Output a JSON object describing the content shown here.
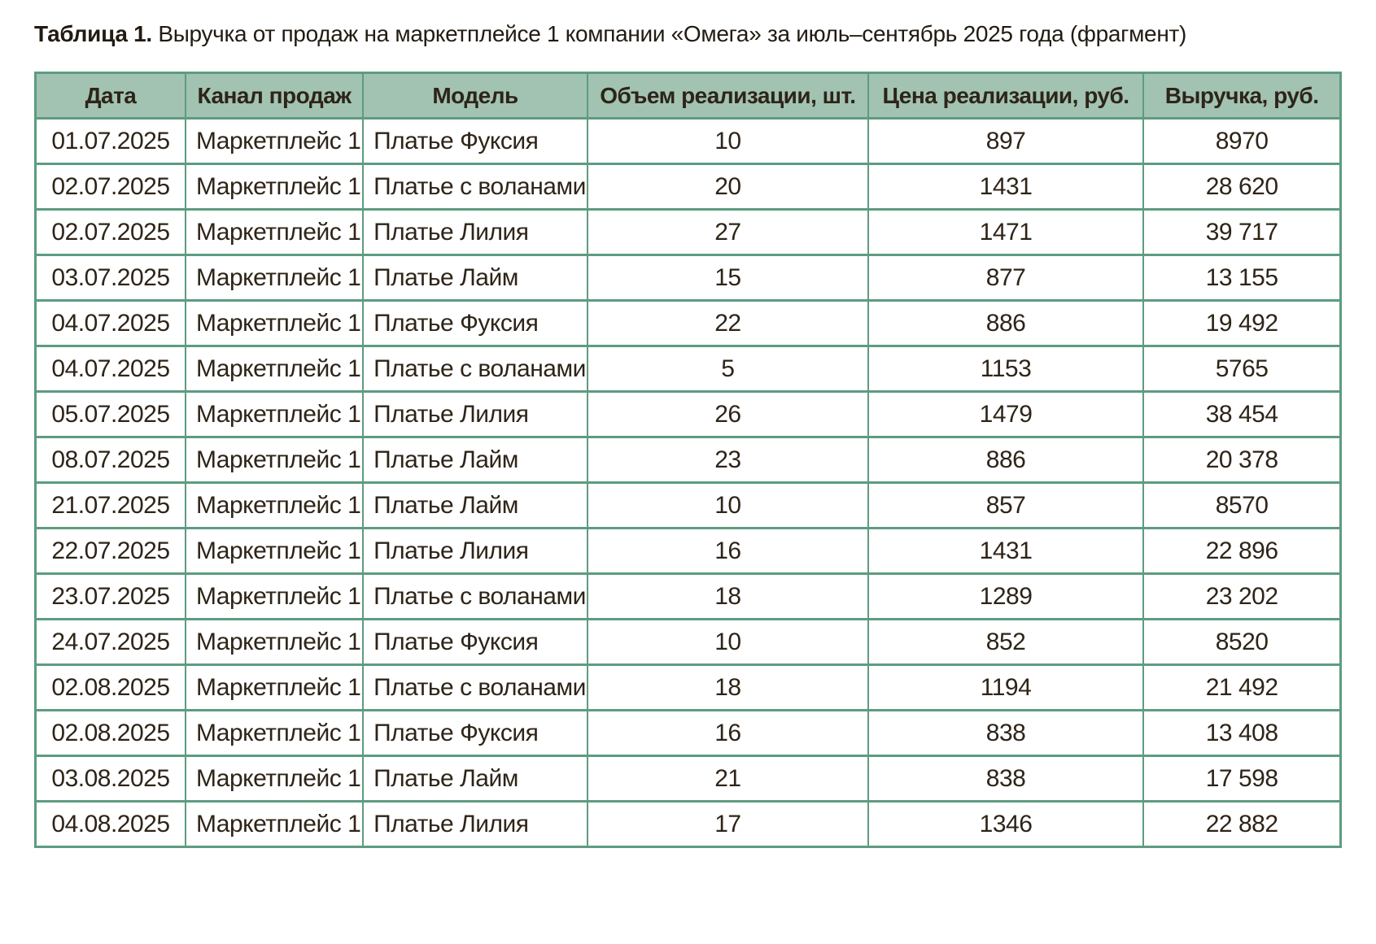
{
  "title": {
    "label": "Таблица 1.",
    "text": " Выручка от продаж на маркетплейсе 1 компании «Омега» за июль–сентябрь 2025 года (фрагмент)"
  },
  "colors": {
    "header_bg": "#a2c3b2",
    "border": "#5d9c81",
    "cell_text": "#2e2418",
    "row_bg": "#ffffff"
  },
  "table": {
    "columns": [
      {
        "key": "date",
        "label": "Дата",
        "align": "center"
      },
      {
        "key": "channel",
        "label": "Канал продаж",
        "align": "left"
      },
      {
        "key": "model",
        "label": "Модель",
        "align": "left"
      },
      {
        "key": "volume",
        "label": "Объем реализации, шт.",
        "align": "center"
      },
      {
        "key": "price",
        "label": "Цена реализации, руб.",
        "align": "center"
      },
      {
        "key": "revenue",
        "label": "Выручка, руб.",
        "align": "center"
      }
    ],
    "rows": [
      [
        "01.07.2025",
        "Маркетплейс 1",
        "Платье Фуксия",
        "10",
        "897",
        "8970"
      ],
      [
        "02.07.2025",
        "Маркетплейс 1",
        "Платье с воланами",
        "20",
        "1431",
        "28 620"
      ],
      [
        "02.07.2025",
        "Маркетплейс 1",
        "Платье Лилия",
        "27",
        "1471",
        "39 717"
      ],
      [
        "03.07.2025",
        "Маркетплейс 1",
        "Платье Лайм",
        "15",
        "877",
        "13 155"
      ],
      [
        "04.07.2025",
        "Маркетплейс 1",
        "Платье Фуксия",
        "22",
        "886",
        "19 492"
      ],
      [
        "04.07.2025",
        "Маркетплейс 1",
        "Платье с воланами",
        "5",
        "1153",
        "5765"
      ],
      [
        "05.07.2025",
        "Маркетплейс 1",
        "Платье Лилия",
        "26",
        "1479",
        "38 454"
      ],
      [
        "08.07.2025",
        "Маркетплейс 1",
        "Платье Лайм",
        "23",
        "886",
        "20 378"
      ],
      [
        "21.07.2025",
        "Маркетплейс 1",
        "Платье Лайм",
        "10",
        "857",
        "8570"
      ],
      [
        "22.07.2025",
        "Маркетплейс 1",
        "Платье Лилия",
        "16",
        "1431",
        "22 896"
      ],
      [
        "23.07.2025",
        "Маркетплейс 1",
        "Платье с воланами",
        "18",
        "1289",
        "23 202"
      ],
      [
        "24.07.2025",
        "Маркетплейс 1",
        "Платье Фуксия",
        "10",
        "852",
        "8520"
      ],
      [
        "02.08.2025",
        "Маркетплейс 1",
        "Платье с воланами",
        "18",
        "1194",
        "21 492"
      ],
      [
        "02.08.2025",
        "Маркетплейс 1",
        "Платье Фуксия",
        "16",
        "838",
        "13 408"
      ],
      [
        "03.08.2025",
        "Маркетплейс 1",
        "Платье Лайм",
        "21",
        "838",
        "17 598"
      ],
      [
        "04.08.2025",
        "Маркетплейс 1",
        "Платье Лилия",
        "17",
        "1346",
        "22 882"
      ]
    ]
  }
}
